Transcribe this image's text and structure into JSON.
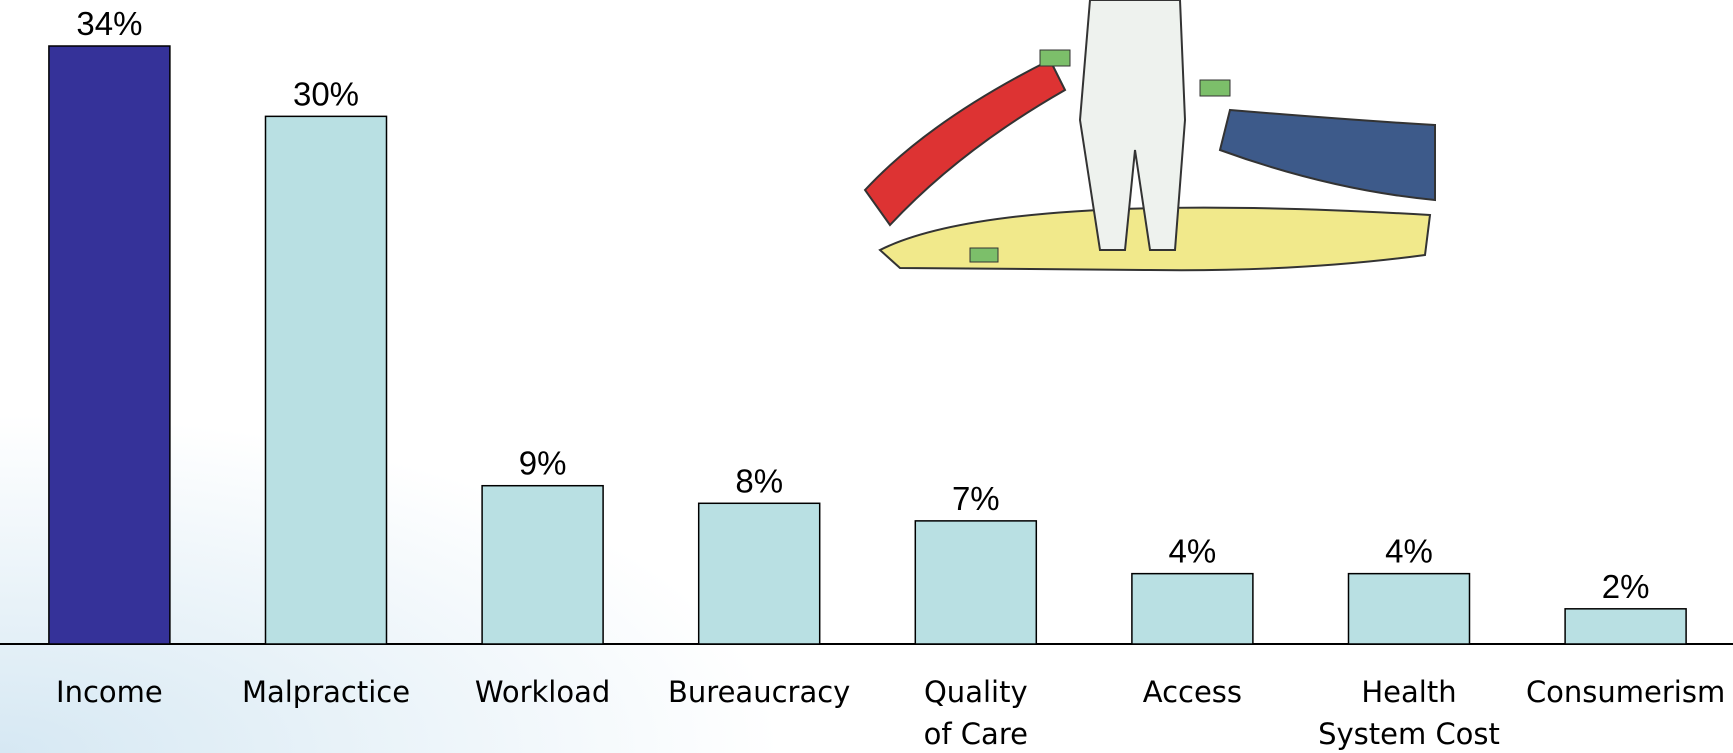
{
  "chart_data": {
    "type": "bar",
    "categories": [
      "Income",
      "Malpractice",
      "Workload",
      "Bureaucracy",
      "Quality\nof Care",
      "Access",
      "Health\nSystem Cost",
      "Consumerism"
    ],
    "values": [
      34,
      30,
      9,
      8,
      7,
      4,
      4,
      2
    ],
    "value_labels": [
      "34%",
      "30%",
      "9%",
      "8%",
      "7%",
      "4%",
      "4%",
      "2%"
    ],
    "colors": [
      "#353299",
      "#b9e0e3",
      "#b9e0e3",
      "#b9e0e3",
      "#b9e0e3",
      "#b9e0e3",
      "#b9e0e3",
      "#b9e0e3"
    ]
  }
}
